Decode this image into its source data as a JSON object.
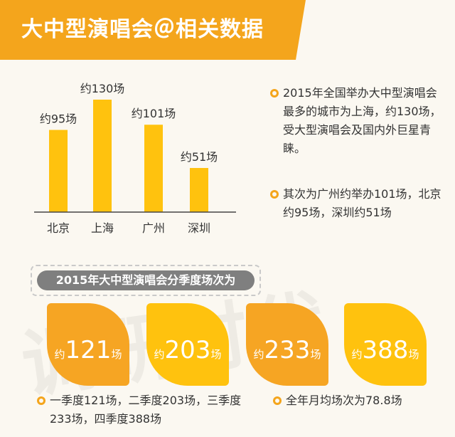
{
  "header": {
    "title": "大中型演唱会＠相关数据"
  },
  "colors": {
    "accent": "#f4a51c",
    "bar": "#ffc20e",
    "leaf_orange": "#f6a523",
    "leaf_yellow": "#ffc20e",
    "label_bg": "#7f7f7f"
  },
  "chart_data": {
    "type": "bar",
    "categories": [
      "北京",
      "上海",
      "广州",
      "深圳"
    ],
    "values": [
      95,
      130,
      101,
      51
    ],
    "data_labels": [
      "约95场",
      "约130场",
      "约101场",
      "约51场"
    ],
    "title": "",
    "xlabel": "",
    "ylabel": "",
    "ylim": [
      0,
      140
    ],
    "grid": false,
    "legend": false
  },
  "notes": [
    "2015年全国举办大中型演唱会最多的城市为上海，约130场，受大型演唱会及国内外巨星青睐。",
    "其次为广州约举办101场，北京约95场，深圳约51场"
  ],
  "section": {
    "label": "2015年大中型演唱会分季度场次为"
  },
  "quarters": [
    {
      "prefix": "约",
      "number": "121",
      "suffix": "场",
      "value": 121,
      "color": "#f6a523"
    },
    {
      "prefix": "约",
      "number": "203",
      "suffix": "场",
      "value": 203,
      "color": "#ffc20e"
    },
    {
      "prefix": "约",
      "number": "233",
      "suffix": "场",
      "value": 233,
      "color": "#f6a523"
    },
    {
      "prefix": "约",
      "number": "388",
      "suffix": "场",
      "value": 388,
      "color": "#ffc20e"
    }
  ],
  "bottom_notes": [
    "一季度121场，二季度203场，三季度233场，四季度388场",
    "全年月均场次为78.8场"
  ],
  "watermark": "调研时代"
}
